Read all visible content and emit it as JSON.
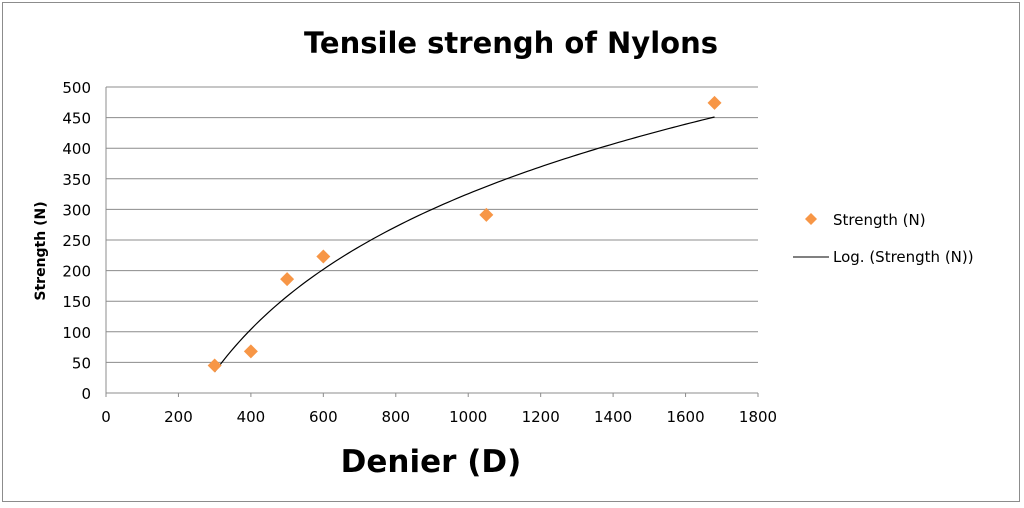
{
  "chart_data": {
    "type": "scatter",
    "title": "Tensile strengh of Nylons",
    "xlabel": "Denier (D)",
    "ylabel": "Strength (N)",
    "xlim": [
      0,
      1800
    ],
    "ylim": [
      0,
      500
    ],
    "x_ticks": [
      "0",
      "200",
      "400",
      "600",
      "800",
      "1000",
      "1200",
      "1400",
      "1600",
      "1800"
    ],
    "y_ticks": [
      "0",
      "50",
      "100",
      "150",
      "200",
      "250",
      "300",
      "350",
      "400",
      "450",
      "500"
    ],
    "grid": "horizontal",
    "legend_position": "right",
    "series": [
      {
        "name": "Strength (N)",
        "kind": "scatter",
        "marker": "diamond",
        "color": "#f79646",
        "x": [
          300,
          400,
          500,
          600,
          1050,
          1680
        ],
        "y": [
          45,
          68,
          186,
          223,
          291,
          474
        ]
      },
      {
        "name": "Log. (Strength (N))",
        "kind": "trendline",
        "fit": "logarithmic",
        "color": "#000000",
        "x_range": [
          300,
          1680
        ]
      }
    ]
  }
}
